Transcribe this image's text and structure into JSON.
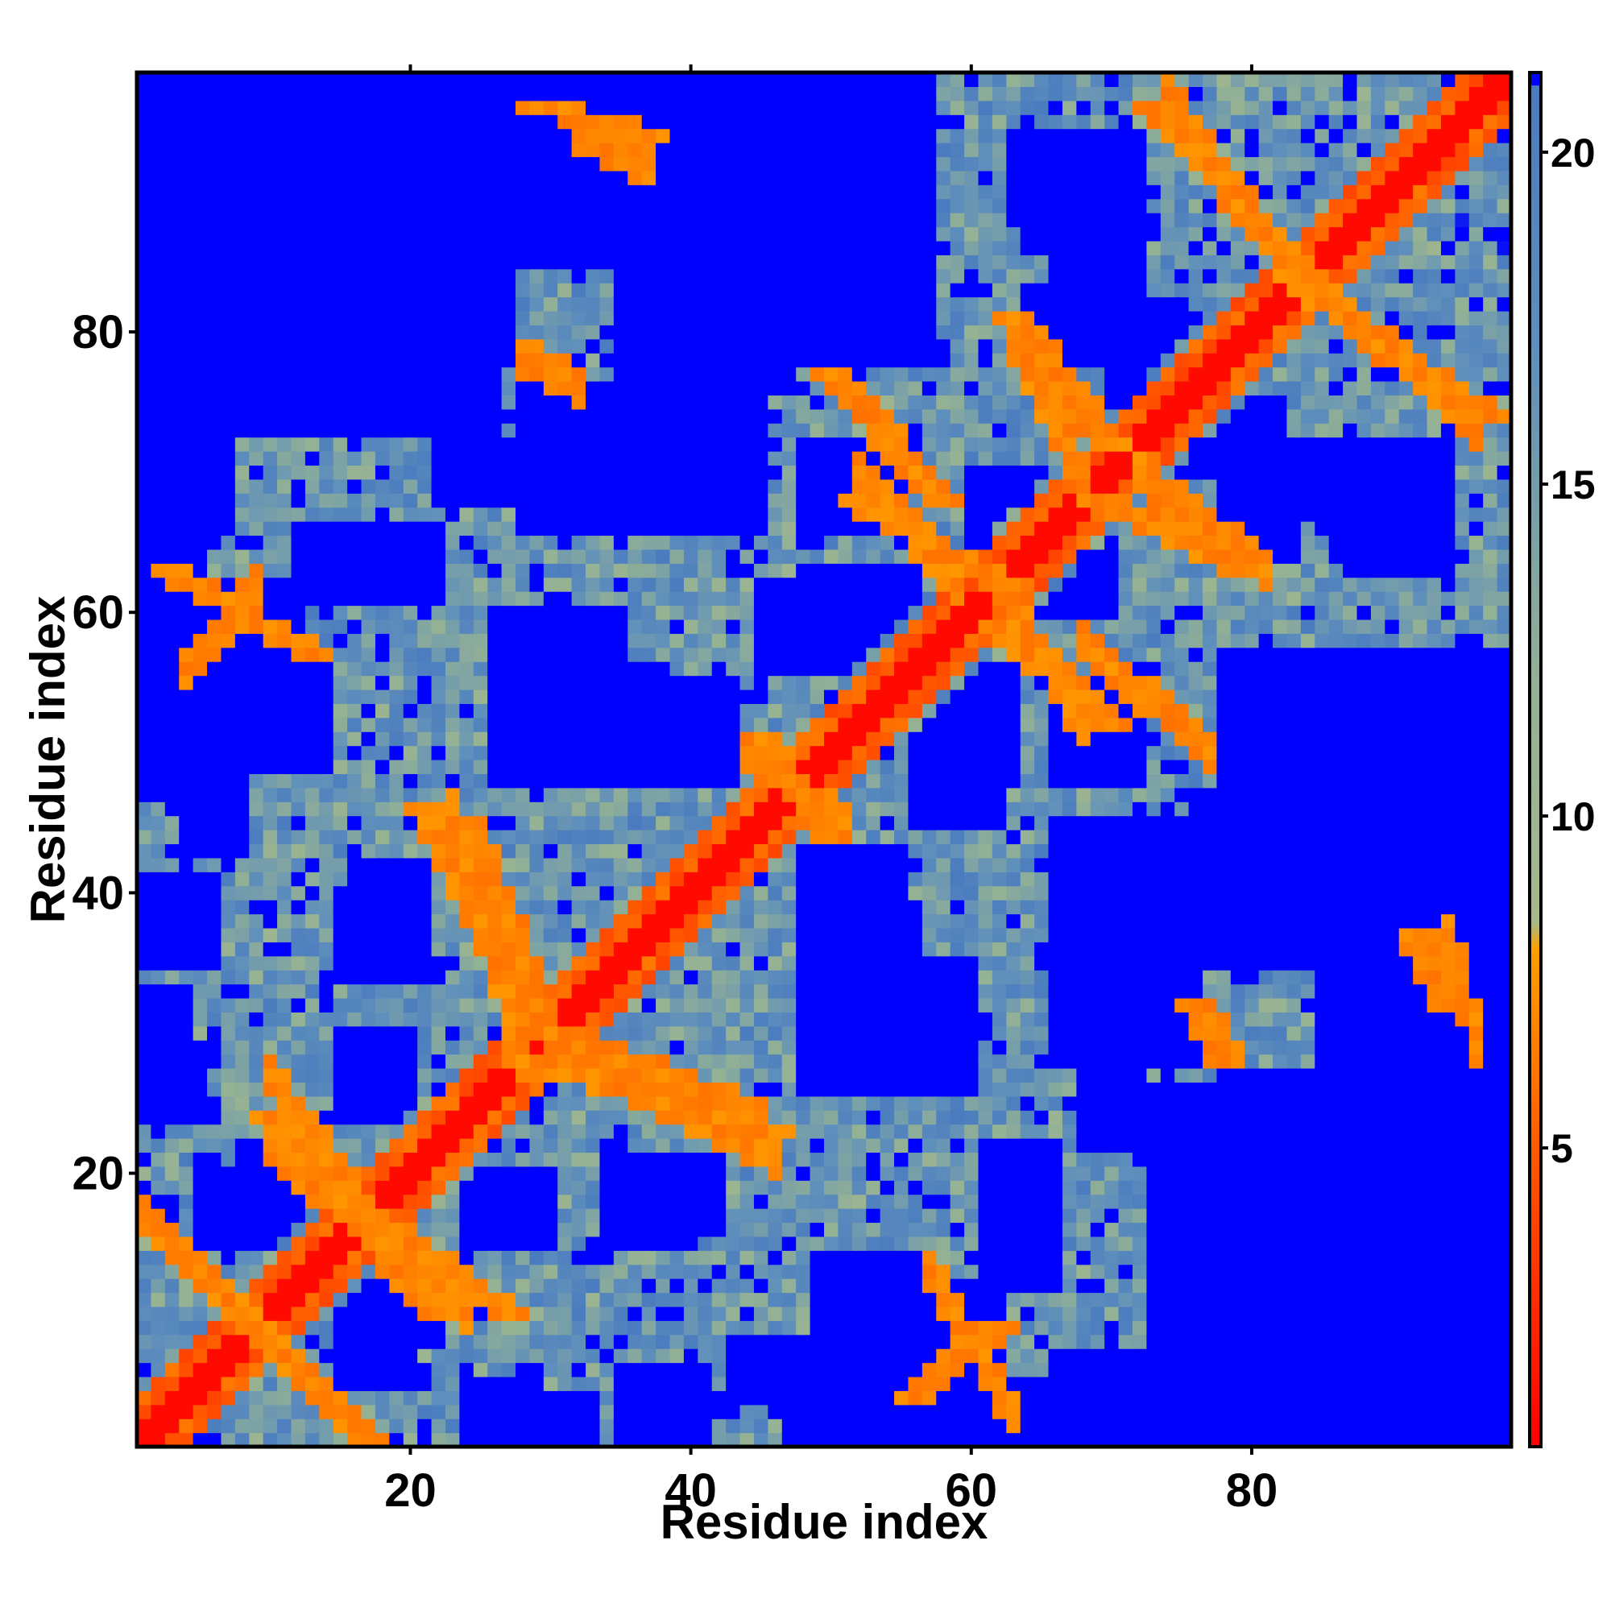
{
  "chart_data": {
    "type": "heatmap",
    "title": "",
    "xlabel": "Residue index",
    "ylabel": "Residue index",
    "xlim": [
      1,
      98
    ],
    "ylim": [
      1,
      98
    ],
    "x_ticks": [
      20,
      40,
      60,
      80
    ],
    "y_ticks": [
      20,
      40,
      60,
      80
    ],
    "n_residues": 98,
    "colorbar": {
      "ticks": [
        5,
        10,
        15,
        20
      ],
      "range": [
        0.5,
        21.2
      ],
      "placement": "right",
      "stops": [
        {
          "value": 0.5,
          "color": "#ff0000"
        },
        {
          "value": 5.0,
          "color": "#ff5a00"
        },
        {
          "value": 8.0,
          "color": "#ffa000"
        },
        {
          "value": 8.4,
          "color": "#a6b98b"
        },
        {
          "value": 12.0,
          "color": "#93b195"
        },
        {
          "value": 17.0,
          "color": "#5f8fbb"
        },
        {
          "value": 21.0,
          "color": "#4a7bbf"
        },
        {
          "value": 21.01,
          "color": "#0000ff"
        }
      ]
    },
    "value_semantics": "pairwise residue distance; cells with values >= 21 are drawn saturated blue",
    "contact_bands": [
      {
        "i": [
          1,
          17
        ],
        "j": [
          17,
          1
        ],
        "value": 6
      },
      {
        "i": [
          10,
          22
        ],
        "j": [
          24,
          10
        ],
        "value": 6
      },
      {
        "i": [
          17,
          27
        ],
        "j": [
          17,
          10
        ],
        "value": 6
      },
      {
        "i": [
          21,
          29
        ],
        "j": [
          46,
          31
        ],
        "value": 6
      },
      {
        "i": [
          30,
          44
        ],
        "j": [
          30,
          25
        ],
        "value": 6
      },
      {
        "i": [
          28,
          46
        ],
        "j": [
          28,
          23
        ],
        "value": 6
      },
      {
        "i": [
          3,
          13
        ],
        "j": [
          63,
          57
        ],
        "value": 6
      },
      {
        "i": [
          50,
          58
        ],
        "j": [
          77,
          68
        ],
        "value": 6
      },
      {
        "i": [
          52,
          62
        ],
        "j": [
          68,
          62
        ],
        "value": 6
      },
      {
        "i": [
          62,
          70
        ],
        "j": [
          59,
          52
        ],
        "value": 6
      },
      {
        "i": [
          63,
          70
        ],
        "j": [
          81,
          72
        ],
        "value": 6
      },
      {
        "i": [
          69,
          80
        ],
        "j": [
          68,
          63
        ],
        "value": 6
      },
      {
        "i": [
          73,
          84
        ],
        "j": [
          96,
          84
        ],
        "value": 6
      },
      {
        "i": [
          84,
          97
        ],
        "j": [
          83,
          74
        ],
        "value": 6
      },
      {
        "i": [
          56,
          62
        ],
        "j": [
          4,
          9
        ],
        "value": 6
      },
      {
        "i": [
          76,
          78
        ],
        "j": [
          32,
          28
        ],
        "value": 6
      },
      {
        "i": [
          92,
          94
        ],
        "j": [
          37,
          32
        ],
        "value": 6
      },
      {
        "i": [
          29,
          37
        ],
        "j": [
          96,
          94
        ],
        "value": 6
      },
      {
        "i": [
          45,
          50
        ],
        "j": [
          51,
          44
        ],
        "value": 6
      }
    ],
    "far_blocks": [
      {
        "i": [
          1,
          12
        ],
        "j": [
          89,
          98
        ],
        "value": 22
      },
      {
        "i": [
          10,
          27
        ],
        "j": [
          78,
          94
        ],
        "value": 22
      },
      {
        "i": [
          35,
          57
        ],
        "j": [
          78,
          93
        ],
        "value": 22
      },
      {
        "i": [
          63,
          72
        ],
        "j": [
          88,
          94
        ],
        "value": 22
      },
      {
        "i": [
          22,
          36
        ],
        "j": [
          68,
          72
        ],
        "value": 22
      },
      {
        "i": [
          35,
          44
        ],
        "j": [
          66,
          72
        ],
        "value": 22
      },
      {
        "i": [
          1,
          6
        ],
        "j": [
          35,
          41
        ],
        "value": 22
      },
      {
        "i": [
          1,
          5
        ],
        "j": [
          24,
          29
        ],
        "value": 22
      },
      {
        "i": [
          15,
          21
        ],
        "j": [
          34,
          40
        ],
        "value": 22
      },
      {
        "i": [
          15,
          19
        ],
        "j": [
          24,
          30
        ],
        "value": 22
      },
      {
        "i": [
          25,
          30
        ],
        "j": [
          16,
          20
        ],
        "value": 22
      },
      {
        "i": [
          26,
          38
        ],
        "j": [
          49,
          56
        ],
        "value": 22
      },
      {
        "i": [
          36,
          43
        ],
        "j": [
          48,
          55
        ],
        "value": 22
      },
      {
        "i": [
          48,
          56
        ],
        "j": [
          58,
          63
        ],
        "value": 22
      },
      {
        "i": [
          48,
          60
        ],
        "j": [
          26,
          35
        ],
        "value": 22
      },
      {
        "i": [
          47,
          57
        ],
        "j": [
          1,
          7
        ],
        "value": 22
      },
      {
        "i": [
          58,
          66
        ],
        "j": [
          1,
          5
        ],
        "value": 22
      },
      {
        "i": [
          66,
          76
        ],
        "j": [
          1,
          7
        ],
        "value": 22
      },
      {
        "i": [
          73,
          98
        ],
        "j": [
          1,
          26
        ],
        "value": 22
      },
      {
        "i": [
          85,
          98
        ],
        "j": [
          27,
          57
        ],
        "value": 22
      },
      {
        "i": [
          66,
          76
        ],
        "j": [
          28,
          45
        ],
        "value": 22
      },
      {
        "i": [
          76,
          84
        ],
        "j": [
          35,
          47
        ],
        "value": 22
      },
      {
        "i": [
          78,
          85
        ],
        "j": [
          50,
          56
        ],
        "value": 22
      },
      {
        "i": [
          61,
          66
        ],
        "j": [
          12,
          22
        ],
        "value": 22
      },
      {
        "i": [
          56,
          62
        ],
        "j": [
          45,
          52
        ],
        "value": 22
      },
      {
        "i": [
          66,
          72
        ],
        "j": [
          48,
          55
        ],
        "value": 22
      },
      {
        "i": [
          78,
          83
        ],
        "j": [
          64,
          72
        ],
        "value": 22
      },
      {
        "i": [
          86,
          94
        ],
        "j": [
          64,
          72
        ],
        "value": 22
      },
      {
        "i": [
          60,
          66
        ],
        "j": [
          64,
          70
        ],
        "value": 22
      },
      {
        "i": [
          70,
          75
        ],
        "j": [
          74,
          82
        ],
        "value": 22
      },
      {
        "i": [
          67,
          72
        ],
        "j": [
          84,
          94
        ],
        "value": 22
      },
      {
        "i": [
          1,
          12
        ],
        "j": [
          55,
          62
        ],
        "value": 22
      },
      {
        "i": [
          1,
          5
        ],
        "j": [
          62,
          68
        ],
        "value": 22
      },
      {
        "i": [
          8,
          14
        ],
        "j": [
          49,
          56
        ],
        "value": 22
      },
      {
        "i": [
          8,
          12
        ],
        "j": [
          16,
          22
        ],
        "value": 22
      },
      {
        "i": [
          15,
          20
        ],
        "j": [
          5,
          10
        ],
        "value": 22
      },
      {
        "i": [
          35,
          42
        ],
        "j": [
          16,
          21
        ],
        "value": 22
      },
      {
        "i": [
          43,
          48
        ],
        "j": [
          4,
          8
        ],
        "value": 22
      },
      {
        "i": [
          26,
          33
        ],
        "j": [
          1,
          4
        ],
        "value": 22
      },
      {
        "i": [
          95,
          98
        ],
        "j": [
          20,
          35
        ],
        "value": 22
      }
    ]
  }
}
